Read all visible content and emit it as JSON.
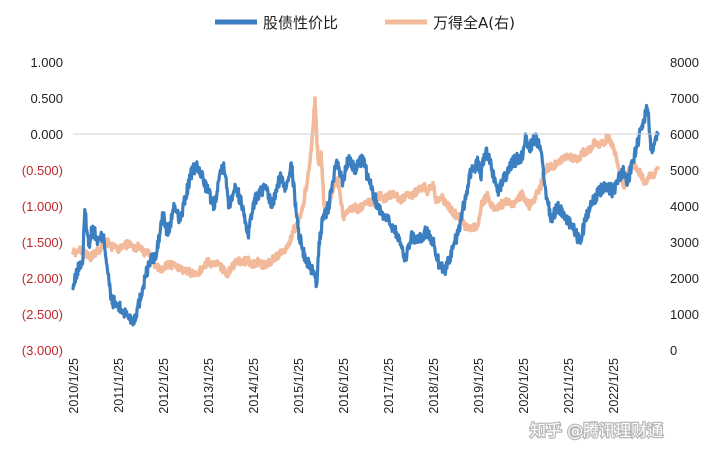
{
  "chart_data": {
    "type": "line",
    "legend": {
      "position": "top-center",
      "items": [
        {
          "name": "股债性价比",
          "color": "#3c7fc0"
        },
        {
          "name": "万得全A(右)",
          "color": "#f2b99a"
        }
      ]
    },
    "y_left": {
      "range": [
        -3.0,
        1.0
      ],
      "ticks": [
        1.0,
        0.5,
        0.0,
        -0.5,
        -1.0,
        -1.5,
        -2.0,
        -2.5,
        -3.0
      ],
      "tick_labels": [
        "1.000",
        "0.500",
        "0.000",
        "(0.500)",
        "(1.000)",
        "(1.500)",
        "(2.000)",
        "(2.500)",
        "(3.000)"
      ],
      "positive_color": "#222222",
      "negative_color": "#c0282d"
    },
    "y_right": {
      "range": [
        0,
        8000
      ],
      "ticks": [
        8000,
        7000,
        6000,
        5000,
        4000,
        3000,
        2000,
        1000,
        0
      ],
      "tick_labels": [
        "8000",
        "7000",
        "6000",
        "5000",
        "4000",
        "3000",
        "2000",
        "1000",
        "0"
      ]
    },
    "x_axis": {
      "range": [
        "2010-01-25",
        "2023-01-25"
      ],
      "tick_labels": [
        "2010/1/25",
        "2011/1/25",
        "2012/1/25",
        "2013/1/25",
        "2014/1/25",
        "2015/1/25",
        "2016/1/25",
        "2017/1/25",
        "2018/1/25",
        "2019/1/25",
        "2020/1/25",
        "2021/1/25",
        "2022/1/25"
      ],
      "tick_label_rotation": -90
    },
    "grid": false,
    "series": [
      {
        "name": "股债性价比",
        "axis": "left",
        "color": "#3c7fc0",
        "points": [
          [
            "2010-01-25",
            -2.15
          ],
          [
            "2010-03-01",
            -1.9
          ],
          [
            "2010-04-15",
            -1.75
          ],
          [
            "2010-05-01",
            -1.05
          ],
          [
            "2010-06-01",
            -1.55
          ],
          [
            "2010-07-01",
            -1.3
          ],
          [
            "2010-08-15",
            -1.5
          ],
          [
            "2010-10-01",
            -1.4
          ],
          [
            "2010-11-01",
            -1.9
          ],
          [
            "2010-12-01",
            -2.3
          ],
          [
            "2011-01-25",
            -2.4
          ],
          [
            "2011-04-01",
            -2.5
          ],
          [
            "2011-06-01",
            -2.6
          ],
          [
            "2011-07-15",
            -2.35
          ],
          [
            "2011-09-01",
            -2.0
          ],
          [
            "2011-10-15",
            -1.75
          ],
          [
            "2011-12-01",
            -1.7
          ],
          [
            "2012-01-25",
            -1.1
          ],
          [
            "2012-03-01",
            -1.4
          ],
          [
            "2012-05-01",
            -1.0
          ],
          [
            "2012-06-15",
            -1.2
          ],
          [
            "2012-09-01",
            -0.6
          ],
          [
            "2012-10-15",
            -0.45
          ],
          [
            "2012-12-01",
            -0.55
          ],
          [
            "2013-01-25",
            -0.8
          ],
          [
            "2013-03-15",
            -1.0
          ],
          [
            "2013-05-01",
            -0.55
          ],
          [
            "2013-06-01",
            -0.4
          ],
          [
            "2013-07-15",
            -1.0
          ],
          [
            "2013-09-01",
            -0.7
          ],
          [
            "2013-11-01",
            -1.0
          ],
          [
            "2013-12-15",
            -1.4
          ],
          [
            "2014-01-25",
            -1.0
          ],
          [
            "2014-03-01",
            -0.85
          ],
          [
            "2014-05-01",
            -0.75
          ],
          [
            "2014-07-01",
            -1.0
          ],
          [
            "2014-09-01",
            -0.6
          ],
          [
            "2014-10-15",
            -0.75
          ],
          [
            "2014-12-01",
            -0.4
          ],
          [
            "2015-01-25",
            -1.3
          ],
          [
            "2015-03-01",
            -1.6
          ],
          [
            "2015-04-15",
            -1.8
          ],
          [
            "2015-06-01",
            -1.9
          ],
          [
            "2015-06-25",
            -2.1
          ],
          [
            "2015-07-15",
            -1.5
          ],
          [
            "2015-08-15",
            -1.2
          ],
          [
            "2015-10-01",
            -1.0
          ],
          [
            "2015-12-01",
            -0.4
          ],
          [
            "2016-01-25",
            -0.65
          ],
          [
            "2016-03-15",
            -0.3
          ],
          [
            "2016-05-01",
            -0.5
          ],
          [
            "2016-07-01",
            -0.35
          ],
          [
            "2016-09-01",
            -0.7
          ],
          [
            "2016-11-01",
            -1.0
          ],
          [
            "2017-01-25",
            -1.2
          ],
          [
            "2017-03-15",
            -1.3
          ],
          [
            "2017-05-01",
            -1.5
          ],
          [
            "2017-06-15",
            -1.75
          ],
          [
            "2017-08-01",
            -1.4
          ],
          [
            "2017-10-01",
            -1.5
          ],
          [
            "2017-12-01",
            -1.35
          ],
          [
            "2018-01-25",
            -1.5
          ],
          [
            "2018-03-15",
            -1.8
          ],
          [
            "2018-05-01",
            -1.9
          ],
          [
            "2018-07-01",
            -1.6
          ],
          [
            "2018-08-15",
            -1.4
          ],
          [
            "2018-10-01",
            -1.0
          ],
          [
            "2018-12-01",
            -0.5
          ],
          [
            "2019-01-25",
            -0.4
          ],
          [
            "2019-02-15",
            -0.6
          ],
          [
            "2019-04-01",
            -0.2
          ],
          [
            "2019-05-15",
            -0.5
          ],
          [
            "2019-07-01",
            -0.8
          ],
          [
            "2019-09-01",
            -0.6
          ],
          [
            "2019-11-01",
            -0.4
          ],
          [
            "2020-01-25",
            -0.3
          ],
          [
            "2020-02-15",
            0.0
          ],
          [
            "2020-03-15",
            -0.2
          ],
          [
            "2020-05-01",
            -0.05
          ],
          [
            "2020-06-15",
            -0.2
          ],
          [
            "2020-08-01",
            -0.9
          ],
          [
            "2020-09-15",
            -1.2
          ],
          [
            "2020-11-01",
            -1.0
          ],
          [
            "2021-01-25",
            -1.2
          ],
          [
            "2021-03-01",
            -1.3
          ],
          [
            "2021-05-01",
            -1.5
          ],
          [
            "2021-06-15",
            -1.2
          ],
          [
            "2021-08-01",
            -1.0
          ],
          [
            "2021-10-01",
            -0.8
          ],
          [
            "2021-12-01",
            -0.7
          ],
          [
            "2022-01-25",
            -0.8
          ],
          [
            "2022-03-01",
            -0.65
          ],
          [
            "2022-04-15",
            -0.5
          ],
          [
            "2022-05-15",
            -0.7
          ],
          [
            "2022-07-01",
            -0.4
          ],
          [
            "2022-08-15",
            -0.1
          ],
          [
            "2022-10-01",
            0.2
          ],
          [
            "2022-11-01",
            0.35
          ],
          [
            "2022-12-01",
            -0.2
          ],
          [
            "2023-01-25",
            0.0
          ]
        ]
      },
      {
        "name": "万得全A(右)",
        "axis": "right",
        "color": "#f2b99a",
        "points": [
          [
            "2010-01-25",
            2700
          ],
          [
            "2010-03-01",
            2750
          ],
          [
            "2010-04-15",
            2800
          ],
          [
            "2010-06-01",
            2550
          ],
          [
            "2010-07-15",
            2650
          ],
          [
            "2010-09-01",
            2800
          ],
          [
            "2010-11-01",
            3000
          ],
          [
            "2010-12-15",
            2850
          ],
          [
            "2011-01-25",
            2800
          ],
          [
            "2011-03-01",
            2850
          ],
          [
            "2011-04-15",
            2950
          ],
          [
            "2011-06-01",
            2800
          ],
          [
            "2011-07-15",
            2900
          ],
          [
            "2011-09-01",
            2700
          ],
          [
            "2011-10-15",
            2650
          ],
          [
            "2011-12-01",
            2300
          ],
          [
            "2012-01-25",
            2200
          ],
          [
            "2012-03-01",
            2400
          ],
          [
            "2012-05-01",
            2350
          ],
          [
            "2012-07-01",
            2250
          ],
          [
            "2012-09-01",
            2150
          ],
          [
            "2012-11-01",
            2100
          ],
          [
            "2012-12-15",
            2300
          ],
          [
            "2013-01-25",
            2450
          ],
          [
            "2013-03-01",
            2400
          ],
          [
            "2013-05-01",
            2350
          ],
          [
            "2013-06-25",
            2100
          ],
          [
            "2013-08-01",
            2250
          ],
          [
            "2013-09-15",
            2450
          ],
          [
            "2013-11-01",
            2450
          ],
          [
            "2013-12-15",
            2500
          ],
          [
            "2014-01-25",
            2350
          ],
          [
            "2014-03-01",
            2450
          ],
          [
            "2014-05-01",
            2350
          ],
          [
            "2014-07-01",
            2500
          ],
          [
            "2014-09-01",
            2700
          ],
          [
            "2014-11-01",
            2850
          ],
          [
            "2014-12-15",
            3300
          ],
          [
            "2015-01-25",
            3500
          ],
          [
            "2015-03-01",
            3900
          ],
          [
            "2015-04-15",
            4800
          ],
          [
            "2015-05-15",
            5600
          ],
          [
            "2015-06-12",
            7000
          ],
          [
            "2015-06-25",
            6000
          ],
          [
            "2015-07-10",
            5200
          ],
          [
            "2015-08-01",
            5500
          ],
          [
            "2015-08-25",
            4000
          ],
          [
            "2015-10-01",
            4000
          ],
          [
            "2015-11-15",
            4600
          ],
          [
            "2015-12-20",
            4700
          ],
          [
            "2016-01-25",
            3700
          ],
          [
            "2016-03-01",
            3800
          ],
          [
            "2016-04-15",
            4000
          ],
          [
            "2016-06-01",
            3900
          ],
          [
            "2016-08-01",
            4100
          ],
          [
            "2016-10-01",
            4100
          ],
          [
            "2016-11-15",
            4300
          ],
          [
            "2016-12-15",
            4200
          ],
          [
            "2017-01-25",
            4250
          ],
          [
            "2017-03-15",
            4350
          ],
          [
            "2017-05-01",
            4150
          ],
          [
            "2017-06-15",
            4250
          ],
          [
            "2017-08-01",
            4300
          ],
          [
            "2017-10-01",
            4450
          ],
          [
            "2017-11-15",
            4550
          ],
          [
            "2017-12-15",
            4400
          ],
          [
            "2018-01-25",
            4650
          ],
          [
            "2018-02-15",
            4200
          ],
          [
            "2018-04-01",
            4250
          ],
          [
            "2018-06-01",
            4000
          ],
          [
            "2018-07-15",
            3800
          ],
          [
            "2018-09-01",
            3650
          ],
          [
            "2018-10-20",
            3400
          ],
          [
            "2018-12-15",
            3400
          ],
          [
            "2019-01-25",
            3450
          ],
          [
            "2019-03-01",
            4100
          ],
          [
            "2019-04-15",
            4300
          ],
          [
            "2019-06-01",
            3900
          ],
          [
            "2019-07-15",
            4000
          ],
          [
            "2019-09-01",
            4100
          ],
          [
            "2019-11-01",
            4050
          ],
          [
            "2019-12-15",
            4200
          ],
          [
            "2020-01-25",
            4350
          ],
          [
            "2020-02-15",
            4150
          ],
          [
            "2020-03-20",
            4000
          ],
          [
            "2020-05-01",
            4250
          ],
          [
            "2020-06-15",
            4500
          ],
          [
            "2020-07-15",
            5000
          ],
          [
            "2020-09-01",
            5100
          ],
          [
            "2020-11-01",
            5150
          ],
          [
            "2020-12-15",
            5300
          ],
          [
            "2021-01-25",
            5400
          ],
          [
            "2021-03-01",
            5350
          ],
          [
            "2021-04-15",
            5300
          ],
          [
            "2021-06-01",
            5500
          ],
          [
            "2021-07-15",
            5550
          ],
          [
            "2021-09-01",
            5800
          ],
          [
            "2021-10-15",
            5700
          ],
          [
            "2021-12-15",
            5900
          ],
          [
            "2022-01-25",
            5700
          ],
          [
            "2022-03-01",
            5200
          ],
          [
            "2022-04-27",
            4500
          ],
          [
            "2022-06-01",
            5000
          ],
          [
            "2022-07-01",
            5200
          ],
          [
            "2022-08-15",
            5000
          ],
          [
            "2022-10-15",
            4650
          ],
          [
            "2022-11-15",
            4900
          ],
          [
            "2022-12-15",
            4800
          ],
          [
            "2023-01-25",
            5050
          ]
        ]
      }
    ]
  },
  "watermark": {
    "text": "知乎 @腾讯理财通"
  }
}
